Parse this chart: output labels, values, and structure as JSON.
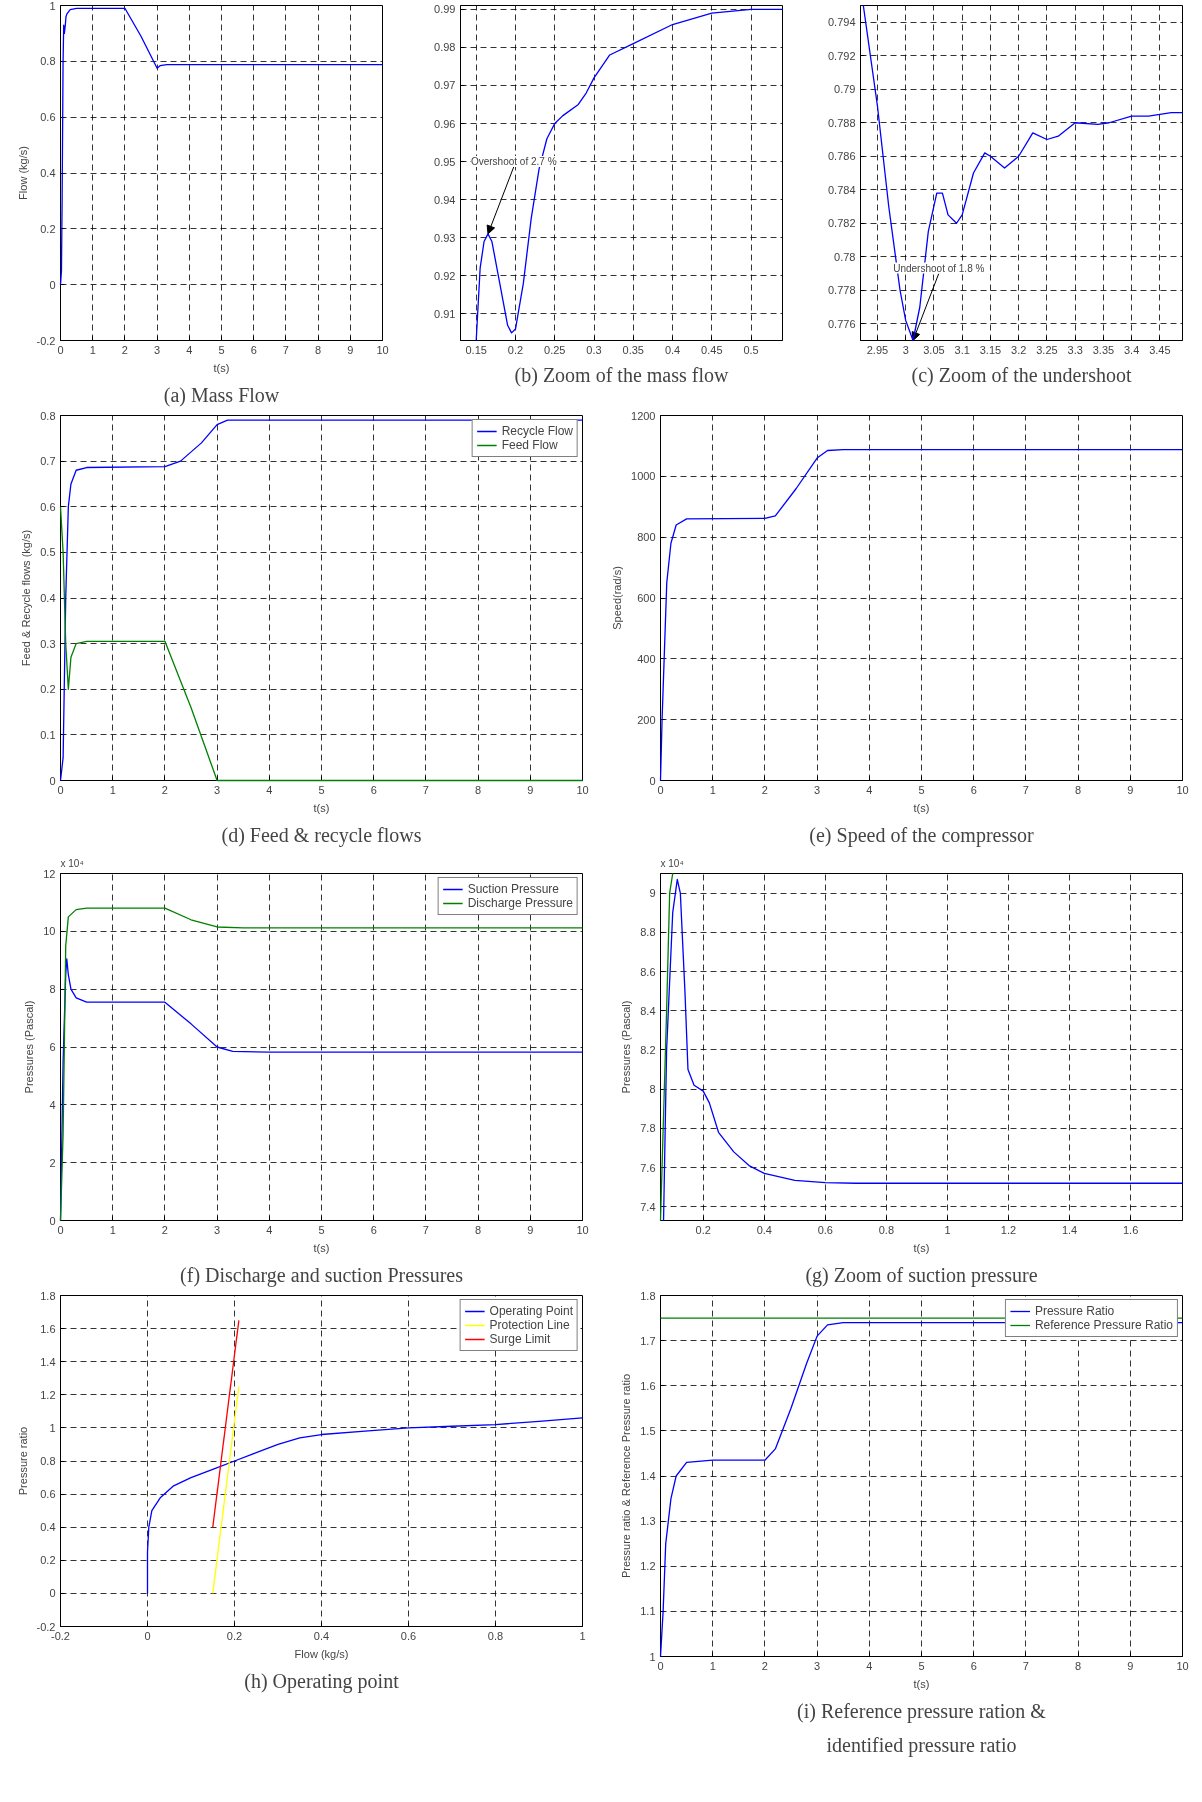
{
  "chart_data": [
    {
      "type": "line",
      "title": "(a) Mass Flow",
      "xlabel": "t(s)",
      "ylabel": "Flow (kg/s)",
      "xlim": [
        0,
        10
      ],
      "ylim": [
        -0.2,
        1
      ],
      "xticks": [
        0,
        1,
        2,
        3,
        4,
        5,
        6,
        7,
        8,
        9,
        10
      ],
      "yticks": [
        -0.2,
        0,
        0.2,
        0.4,
        0.6,
        0.8,
        1
      ],
      "grid": true,
      "series": [
        {
          "color": "#0000ff",
          "x": [
            0,
            0.03,
            0.05,
            0.08,
            0.1,
            0.12,
            0.15,
            0.17,
            0.2,
            0.3,
            0.5,
            1,
            2,
            2.5,
            3,
            3.1,
            3.3,
            10
          ],
          "values": [
            0,
            0.05,
            0.3,
            0.8,
            0.93,
            0.9,
            0.93,
            0.96,
            0.97,
            0.985,
            0.99,
            0.99,
            0.99,
            0.89,
            0.775,
            0.785,
            0.788,
            0.788
          ]
        }
      ]
    },
    {
      "type": "line",
      "title": "(b) Zoom of the mass flow",
      "xlim": [
        0.13,
        0.54
      ],
      "ylim": [
        0.903,
        0.991
      ],
      "xticks": [
        0.15,
        0.2,
        0.25,
        0.3,
        0.35,
        0.4,
        0.45,
        0.5
      ],
      "yticks": [
        0.91,
        0.92,
        0.93,
        0.94,
        0.95,
        0.96,
        0.97,
        0.98,
        0.99
      ],
      "grid": true,
      "series": [
        {
          "color": "#0000ff",
          "x": [
            0.15,
            0.155,
            0.16,
            0.165,
            0.17,
            0.18,
            0.19,
            0.195,
            0.2,
            0.21,
            0.22,
            0.23,
            0.24,
            0.25,
            0.26,
            0.28,
            0.29,
            0.3,
            0.32,
            0.35,
            0.4,
            0.45,
            0.5,
            0.54
          ],
          "values": [
            0.903,
            0.922,
            0.929,
            0.931,
            0.929,
            0.918,
            0.907,
            0.905,
            0.906,
            0.918,
            0.935,
            0.948,
            0.956,
            0.96,
            0.962,
            0.965,
            0.968,
            0.972,
            0.978,
            0.981,
            0.986,
            0.989,
            0.99,
            0.99
          ]
        }
      ],
      "annotations": [
        {
          "text": "Overshoot of 2.7 %",
          "x": 0.165,
          "y": 0.931
        }
      ]
    },
    {
      "type": "line",
      "title": "(c) Zoom of the undershoot",
      "xlim": [
        2.92,
        3.49
      ],
      "ylim": [
        0.775,
        0.795
      ],
      "xticks": [
        2.95,
        3,
        3.05,
        3.1,
        3.15,
        3.2,
        3.25,
        3.3,
        3.35,
        3.4,
        3.45
      ],
      "yticks": [
        0.776,
        0.778,
        0.78,
        0.782,
        0.784,
        0.786,
        0.788,
        0.79,
        0.792,
        0.794
      ],
      "grid": true,
      "series": [
        {
          "color": "#0000ff",
          "x": [
            2.925,
            2.95,
            2.97,
            2.99,
            3.0,
            3.013,
            3.025,
            3.04,
            3.055,
            3.065,
            3.075,
            3.09,
            3.1,
            3.12,
            3.14,
            3.15,
            3.175,
            3.2,
            3.225,
            3.25,
            3.27,
            3.3,
            3.34,
            3.36,
            3.4,
            3.43,
            3.47,
            3.49
          ],
          "values": [
            0.795,
            0.789,
            0.783,
            0.778,
            0.7762,
            0.775,
            0.777,
            0.7815,
            0.7838,
            0.7838,
            0.7825,
            0.782,
            0.7825,
            0.785,
            0.7862,
            0.786,
            0.7853,
            0.786,
            0.7874,
            0.787,
            0.7872,
            0.788,
            0.7879,
            0.788,
            0.7884,
            0.7884,
            0.7886,
            0.7886
          ]
        }
      ],
      "annotations": [
        {
          "text": "Undershoot of 1.8 %",
          "x": 3.013,
          "y": 0.775
        }
      ]
    },
    {
      "type": "line",
      "title": "(d) Feed & recycle flows",
      "xlabel": "t(s)",
      "ylabel": "Feed & Recycle flows (kg/s)",
      "xlim": [
        0,
        10
      ],
      "ylim": [
        0,
        0.8
      ],
      "xticks": [
        0,
        1,
        2,
        3,
        4,
        5,
        6,
        7,
        8,
        9,
        10
      ],
      "yticks": [
        0,
        0.1,
        0.2,
        0.3,
        0.4,
        0.5,
        0.6,
        0.7,
        0.8
      ],
      "grid": true,
      "legend": "top right",
      "series": [
        {
          "name": "Recycle Flow",
          "color": "#0000ff",
          "x": [
            0,
            0.05,
            0.1,
            0.15,
            0.2,
            0.3,
            0.5,
            2,
            2.3,
            2.7,
            3,
            3.2,
            3.5,
            10
          ],
          "values": [
            0,
            0.05,
            0.4,
            0.6,
            0.65,
            0.68,
            0.686,
            0.688,
            0.7,
            0.74,
            0.78,
            0.79,
            0.79,
            0.79
          ]
        },
        {
          "name": "Feed Flow",
          "color": "#008000",
          "x": [
            0,
            0.05,
            0.1,
            0.15,
            0.2,
            0.3,
            0.5,
            2,
            2.5,
            3,
            10
          ],
          "values": [
            0.6,
            0.5,
            0.3,
            0.2,
            0.27,
            0.3,
            0.305,
            0.305,
            0.16,
            0,
            0
          ]
        }
      ]
    },
    {
      "type": "line",
      "title": "(e) Speed of the compressor",
      "xlabel": "t(s)",
      "ylabel": "Speed(rad/s)",
      "xlim": [
        0,
        10
      ],
      "ylim": [
        0,
        1200
      ],
      "xticks": [
        0,
        1,
        2,
        3,
        4,
        5,
        6,
        7,
        8,
        9,
        10
      ],
      "yticks": [
        0,
        200,
        400,
        600,
        800,
        1000,
        1200
      ],
      "grid": true,
      "series": [
        {
          "color": "#0000ff",
          "x": [
            0,
            0.03,
            0.08,
            0.12,
            0.2,
            0.3,
            0.5,
            2,
            2.2,
            2.6,
            3,
            3.2,
            3.5,
            10
          ],
          "values": [
            0,
            200,
            450,
            650,
            780,
            840,
            860,
            862,
            870,
            960,
            1060,
            1085,
            1088,
            1088
          ]
        }
      ]
    },
    {
      "type": "line",
      "title": "(f) Discharge and suction Pressures",
      "xlabel": "t(s)",
      "ylabel": "Pressures (Pascal)",
      "xlim": [
        0,
        10
      ],
      "ylim": [
        0,
        12
      ],
      "xticks": [
        0,
        1,
        2,
        3,
        4,
        5,
        6,
        7,
        8,
        9,
        10
      ],
      "yticks": [
        0,
        2,
        4,
        6,
        8,
        10,
        12
      ],
      "grid": true,
      "legend": "top right",
      "annotations": [
        "x 10⁴"
      ],
      "series": [
        {
          "name": "Suction Pressure",
          "color": "#0000ff",
          "x": [
            0,
            0.05,
            0.1,
            0.12,
            0.15,
            0.2,
            0.3,
            0.5,
            2,
            2.5,
            3,
            3.3,
            4,
            10
          ],
          "values": [
            0,
            5.5,
            8.5,
            9.05,
            8.5,
            8,
            7.7,
            7.55,
            7.55,
            6.8,
            6.0,
            5.85,
            5.82,
            5.82
          ]
        },
        {
          "name": "Discharge Pressure",
          "color": "#008000",
          "x": [
            0,
            0.05,
            0.1,
            0.15,
            0.3,
            0.5,
            2,
            2.5,
            3,
            3.5,
            10
          ],
          "values": [
            0,
            3,
            9.5,
            10.5,
            10.75,
            10.8,
            10.8,
            10.4,
            10.15,
            10.12,
            10.12
          ]
        }
      ]
    },
    {
      "type": "line",
      "title": "(g) Zoom of suction pressure",
      "xlabel": "t(s)",
      "ylabel": "Pressures (Pascal)",
      "xlim": [
        0.06,
        1.77
      ],
      "ylim": [
        7.33,
        9.1
      ],
      "xticks": [
        0.2,
        0.4,
        0.6,
        0.8,
        1,
        1.2,
        1.4,
        1.6
      ],
      "yticks": [
        7.4,
        7.6,
        7.8,
        8,
        8.2,
        8.4,
        8.6,
        8.8,
        9
      ],
      "grid": true,
      "annotations": [
        "x 10⁴"
      ],
      "series": [
        {
          "color": "#0000ff",
          "x": [
            0.07,
            0.08,
            0.1,
            0.115,
            0.125,
            0.14,
            0.15,
            0.17,
            0.2,
            0.22,
            0.25,
            0.3,
            0.35,
            0.4,
            0.5,
            0.6,
            0.7,
            1.77
          ],
          "values": [
            7.33,
            8.2,
            8.9,
            9.07,
            9.0,
            8.5,
            8.1,
            8.02,
            7.99,
            7.93,
            7.78,
            7.68,
            7.61,
            7.57,
            7.535,
            7.523,
            7.52,
            7.52
          ]
        },
        {
          "color": "#008000",
          "x": [
            0.06,
            0.08,
            0.09,
            0.1
          ],
          "values": [
            7.33,
            8.4,
            9.0,
            9.1
          ]
        }
      ]
    },
    {
      "type": "line",
      "title": "(h) Operating point",
      "xlabel": "Flow (kg/s)",
      "ylabel": "Pressure ratio",
      "xlim": [
        -0.2,
        1
      ],
      "ylim": [
        -0.2,
        1.8
      ],
      "xticks": [
        -0.2,
        0,
        0.2,
        0.4,
        0.6,
        0.8,
        1
      ],
      "yticks": [
        -0.2,
        0,
        0.2,
        0.4,
        0.6,
        0.8,
        1,
        1.2,
        1.4,
        1.6,
        1.8
      ],
      "grid": true,
      "legend": "top right",
      "series": [
        {
          "name": "Operating Point",
          "color": "#0000ff",
          "x": [
            0,
            0,
            0.003,
            0.01,
            0.03,
            0.06,
            0.1,
            0.15,
            0.2,
            0.25,
            0.3,
            0.35,
            0.4,
            0.5,
            0.6,
            0.7,
            0.8,
            0.9,
            0.95,
            1
          ],
          "values": [
            0,
            0.25,
            0.4,
            0.5,
            0.58,
            0.65,
            0.7,
            0.75,
            0.8,
            0.85,
            0.9,
            0.94,
            0.96,
            0.98,
            1.0,
            1.01,
            1.02,
            1.04,
            1.05,
            1.06
          ]
        },
        {
          "name": "Protection Line",
          "color": "#ffff00",
          "x": [
            0.15,
            0.21
          ],
          "values": [
            0,
            1.25
          ]
        },
        {
          "name": "Surge Limit",
          "color": "#ff0000",
          "x": [
            0.15,
            0.21
          ],
          "values": [
            0.4,
            1.65
          ]
        }
      ]
    },
    {
      "type": "line",
      "title": "(i) Reference pressure ration & identified pressure ratio",
      "xlabel": "t(s)",
      "ylabel": "Pressure ratio & Reference Pressure ratio",
      "xlim": [
        0,
        10
      ],
      "ylim": [
        1,
        1.8
      ],
      "xticks": [
        0,
        1,
        2,
        3,
        4,
        5,
        6,
        7,
        8,
        9,
        10
      ],
      "yticks": [
        1,
        1.1,
        1.2,
        1.3,
        1.4,
        1.5,
        1.6,
        1.7,
        1.8
      ],
      "grid": true,
      "legend": "top right",
      "series": [
        {
          "name": "Pressure Ratio",
          "color": "#0000ff",
          "x": [
            0,
            0.05,
            0.1,
            0.2,
            0.3,
            0.5,
            1,
            2,
            2.2,
            2.5,
            2.8,
            3,
            3.2,
            3.5,
            10
          ],
          "values": [
            1,
            1.1,
            1.25,
            1.35,
            1.4,
            1.43,
            1.435,
            1.435,
            1.46,
            1.55,
            1.65,
            1.71,
            1.735,
            1.74,
            1.74
          ]
        },
        {
          "name": "Reference Pressure Ratio",
          "color": "#008000",
          "x": [
            0,
            10
          ],
          "values": [
            1.75,
            1.75
          ]
        }
      ]
    }
  ]
}
